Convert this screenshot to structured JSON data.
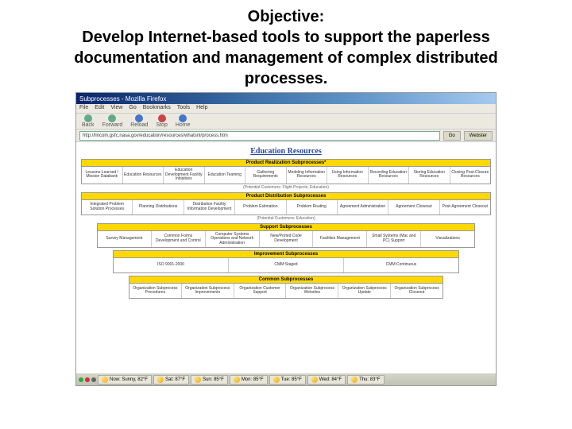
{
  "slide": {
    "line1": "Objective:",
    "line2": "Develop Internet-based tools to support the paperless documentation and management of complex distributed processes."
  },
  "browser": {
    "title": "Subprocesses - Mozilla Firefox",
    "menus": [
      "File",
      "Edit",
      "View",
      "Go",
      "Bookmarks",
      "Tools",
      "Help"
    ],
    "nav": {
      "back": "Back",
      "forward": "Forward",
      "reload": "Reload",
      "stop": "Stop",
      "home": "Home"
    },
    "url": "http://lincoln.gsfc.nasa.gov/education/resources/whatsnl/process.htm",
    "go": "Go",
    "search_label": "Webster"
  },
  "page": {
    "title": "Education Resources",
    "sections": [
      {
        "header": "Product Realization Subprocesses*",
        "caption": "(Potential Customers: Flight Projects, Education)",
        "cells": [
          "Lessons-Learned / Mission Databank",
          "Education Resources",
          "Education Development Facility Initiatives",
          "Education Teaming",
          "Gathering Requirements",
          "Modeling Information Resources",
          "Using Information Resources",
          "Recording Education Resources",
          "Storing Education Resources",
          "Closing Post-Closure Resources"
        ]
      },
      {
        "header": "Product Distribution Subprocesses",
        "caption": "(Potential Customers: Education)",
        "cells": [
          "Integrated Problem Solution Processes",
          "Planning Distributions",
          "Distribution Facility Information Development",
          "Problem Estimation",
          "Problem Routing",
          "Agreement Administration",
          "Agreement Closeout",
          "Post-Agreement Closeout"
        ]
      },
      {
        "header": "Support Subprocesses",
        "cells": [
          "Survey Management",
          "Common Forms Development and Control",
          "Computer Systems Operations and Network Administration",
          "New/Ported Code Development",
          "Facilities Management",
          "Small Systems (Mac and PC) Support",
          "Visualizations"
        ]
      },
      {
        "header": "Improvement Subprocesses",
        "cells": [
          "ISO 9001-2000",
          "CMM:Staged",
          "CMM:Continuous"
        ]
      },
      {
        "header": "Common Subprocesses",
        "cells": [
          "Organization Subprocess Procedures",
          "Organization Subprocess Improvements",
          "Organization Customer Support",
          "Organization Subprocess Websites",
          "Organization Subprocess Update",
          "Organization Subprocess Closeout"
        ]
      }
    ]
  },
  "taskbar": {
    "items": [
      {
        "label": "Now: Sunny, 82°F"
      },
      {
        "label": "Sat: 87°F"
      },
      {
        "label": "Sun: 85°F"
      },
      {
        "label": "Mon: 85°F"
      },
      {
        "label": "Tue: 85°F"
      },
      {
        "label": "Wed: 84°F"
      },
      {
        "label": "Thu: 83°F"
      }
    ]
  }
}
